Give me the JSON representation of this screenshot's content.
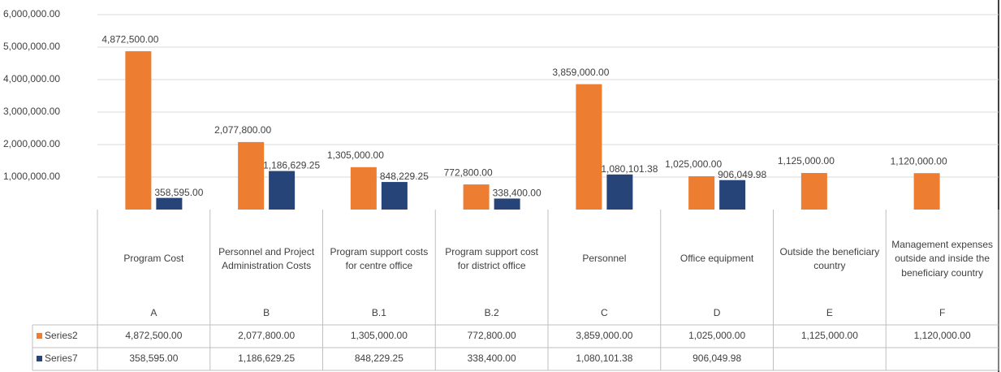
{
  "chart_data": {
    "type": "bar",
    "categories": [
      "A",
      "B",
      "B.1",
      "B.2",
      "C",
      "D",
      "E",
      "F"
    ],
    "category_descriptions": [
      "Program Cost",
      "Personnel and Project Administration Costs",
      "Program support costs for centre office",
      "Program support cost for district office",
      "Personnel",
      "Office equipment",
      "Outside the beneficiary country",
      "Management expenses outside and inside the beneficiary country"
    ],
    "series": [
      {
        "name": "Series2",
        "color": "#ed7d31",
        "values": [
          4872500,
          2077800,
          1305000,
          772800,
          3859000,
          1025000,
          1125000,
          1120000
        ],
        "value_labels": [
          "4,872,500.00",
          "2,077,800.00",
          "1,305,000.00",
          "772,800.00",
          "3,859,000.00",
          "1,025,000.00",
          "1,125,000.00",
          "1,120,000.00"
        ]
      },
      {
        "name": "Series7",
        "color": "#264478",
        "values": [
          358595,
          1186629.25,
          848229.25,
          338400,
          1080101.38,
          906049.98,
          null,
          null
        ],
        "value_labels": [
          "358,595.00",
          "1,186,629.25",
          "848,229.25",
          "338,400.00",
          "1,080,101.38",
          "906,049.98",
          null,
          null
        ]
      }
    ],
    "ylim": [
      0,
      6000000
    ],
    "yticks": [
      {
        "value": 1000000,
        "label": "1,000,000.00"
      },
      {
        "value": 2000000,
        "label": "2,000,000.00"
      },
      {
        "value": 3000000,
        "label": "3,000,000.00"
      },
      {
        "value": 4000000,
        "label": "4,000,000.00"
      },
      {
        "value": 5000000,
        "label": "5,000,000.00"
      },
      {
        "value": 6000000,
        "label": "6,000,000.00"
      }
    ],
    "grid": true
  }
}
